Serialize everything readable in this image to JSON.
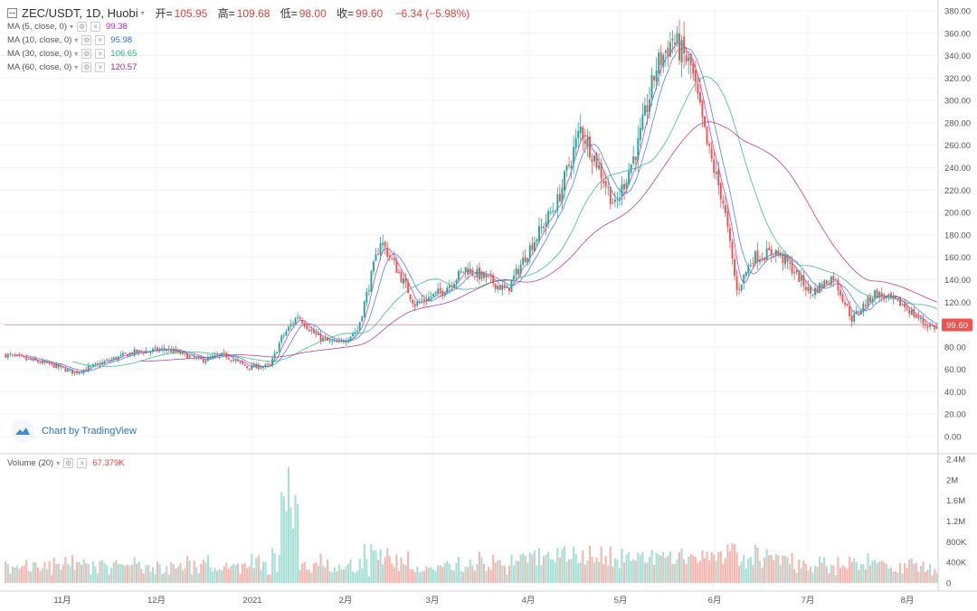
{
  "header": {
    "symbol": "ZEC/USDT, 1D, Huobi",
    "open_label": "开=",
    "open": "105.95",
    "high_label": "高=",
    "high": "109.68",
    "low_label": "低=",
    "low": "98.00",
    "close_label": "收=",
    "close": "99.60",
    "change": "−6.34 (−5.98%)"
  },
  "indicators": [
    {
      "label": "MA (5, close, 0)",
      "value": "99.38",
      "color": "#c21fc2"
    },
    {
      "label": "MA (10, close, 0)",
      "value": "95.98",
      "color": "#2e6fe0"
    },
    {
      "label": "MA (30, close, 0)",
      "value": "106.65",
      "color": "#22b07a"
    },
    {
      "label": "MA (60, close, 0)",
      "value": "120.57",
      "color": "#a8237f"
    }
  ],
  "volume_legend": {
    "label": "Volume (20)",
    "value": "67.379K"
  },
  "branding": {
    "text": "Chart by TradingView"
  },
  "colors": {
    "up": "#26a69a",
    "down": "#ef5350",
    "vol_up": "#a8dfd6",
    "vol_down": "#f5b7b1",
    "price_line": "#ef5350"
  },
  "chart_data": {
    "type": "candlestick",
    "price_axis": {
      "min": 0,
      "max": 380,
      "ticks": [
        "380.00",
        "360.00",
        "340.00",
        "320.00",
        "300.00",
        "280.00",
        "260.00",
        "240.00",
        "220.00",
        "200.00",
        "180.00",
        "160.00",
        "140.00",
        "120.00",
        "100.00",
        "80.00",
        "60.00",
        "40.00",
        "20.00",
        "0.00"
      ]
    },
    "current_price": "99.60",
    "volume_axis": {
      "min": 0,
      "max": 2400000,
      "ticks": [
        "2.4M",
        "2M",
        "1.6M",
        "1.2M",
        "800K",
        "400K",
        "0"
      ]
    },
    "time_labels": [
      "11月",
      "12月",
      "2021",
      "2月",
      "3月",
      "4月",
      "5月",
      "6月",
      "7月",
      "8月"
    ],
    "close_anchors": [
      [
        0,
        73
      ],
      [
        20,
        64
      ],
      [
        30,
        57
      ],
      [
        45,
        68
      ],
      [
        55,
        75
      ],
      [
        70,
        78
      ],
      [
        85,
        68
      ],
      [
        95,
        73
      ],
      [
        105,
        62
      ],
      [
        115,
        63
      ],
      [
        120,
        88
      ],
      [
        127,
        108
      ],
      [
        135,
        90
      ],
      [
        140,
        85
      ],
      [
        145,
        83
      ],
      [
        153,
        95
      ],
      [
        163,
        175
      ],
      [
        170,
        150
      ],
      [
        178,
        118
      ],
      [
        190,
        130
      ],
      [
        200,
        150
      ],
      [
        210,
        140
      ],
      [
        218,
        130
      ],
      [
        227,
        165
      ],
      [
        240,
        210
      ],
      [
        250,
        275
      ],
      [
        257,
        245
      ],
      [
        265,
        205
      ],
      [
        275,
        260
      ],
      [
        283,
        330
      ],
      [
        290,
        355
      ],
      [
        298,
        330
      ],
      [
        305,
        260
      ],
      [
        312,
        210
      ],
      [
        318,
        130
      ],
      [
        325,
        160
      ],
      [
        335,
        165
      ],
      [
        342,
        150
      ],
      [
        350,
        128
      ],
      [
        360,
        143
      ],
      [
        368,
        105
      ],
      [
        378,
        128
      ],
      [
        390,
        118
      ],
      [
        400,
        100
      ],
      [
        405,
        97
      ]
    ]
  }
}
